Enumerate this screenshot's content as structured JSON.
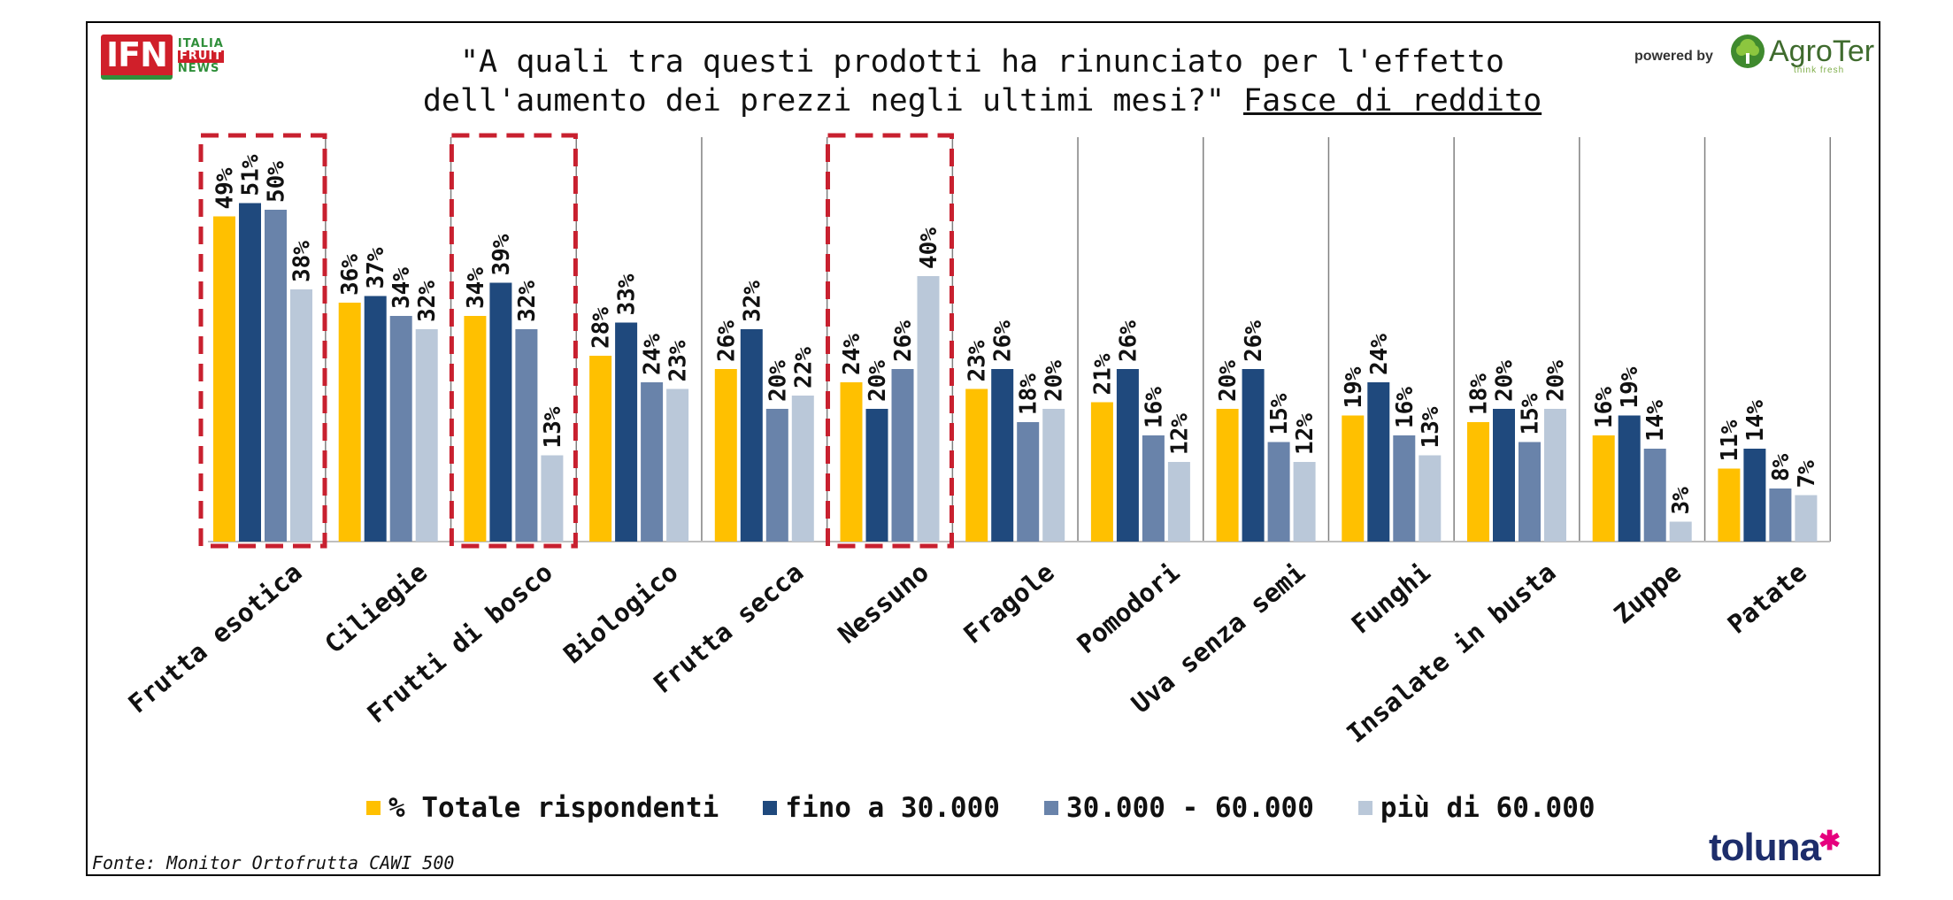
{
  "header": {
    "logo_left": {
      "main": "IFN",
      "line1": "ITALIA",
      "line2": "FRUIT",
      "line3": "NEWS"
    },
    "title_text": "\"A quali tra questi prodotti ha rinunciato per l'effetto dell'aumento dei prezzi negli ultimi mesi?\"",
    "title_emphasis": "Fasce di reddito",
    "powered_by": "powered by",
    "logo_right": {
      "name": "AgroTer",
      "tagline": "think fresh",
      "icon": "tree-icon"
    }
  },
  "footer": {
    "source": "Fonte: Monitor Ortofrutta CAWI 500",
    "brand": "toluna",
    "brand_icon": "asterisk-icon"
  },
  "colors": {
    "highlight_border": "#c8202f",
    "separator": "#808080",
    "axis": "#bfbfbf"
  },
  "chart_data": {
    "type": "bar",
    "categories": [
      "Frutta esotica",
      "Ciliegie",
      "Frutti di bosco",
      "Biologico",
      "Frutta secca",
      "Nessuno",
      "Fragole",
      "Pomodori",
      "Uva senza semi",
      "Funghi",
      "Insalate in busta",
      "Zuppe",
      "Patate"
    ],
    "series": [
      {
        "name": "% Totale rispondenti",
        "color": "#ffc000",
        "values": [
          49,
          36,
          34,
          28,
          26,
          24,
          23,
          21,
          20,
          19,
          18,
          16,
          11
        ]
      },
      {
        "name": "fino a 30.000",
        "color": "#1f497d",
        "values": [
          51,
          37,
          39,
          33,
          32,
          20,
          26,
          26,
          26,
          24,
          20,
          19,
          14
        ]
      },
      {
        "name": "30.000 - 60.000",
        "color": "#6983aa",
        "values": [
          50,
          34,
          32,
          24,
          20,
          26,
          18,
          16,
          15,
          16,
          15,
          14,
          8
        ]
      },
      {
        "name": "più di 60.000",
        "color": "#bac8d9",
        "values": [
          38,
          32,
          13,
          23,
          22,
          40,
          20,
          12,
          12,
          13,
          20,
          3,
          7
        ]
      }
    ],
    "value_suffix": "%",
    "ylim": [
      0,
      52
    ],
    "highlighted_categories": [
      "Frutta esotica",
      "Frutti di bosco",
      "Nessuno"
    ],
    "legend_position": "bottom",
    "grid": false,
    "xlabel": "",
    "ylabel": ""
  }
}
